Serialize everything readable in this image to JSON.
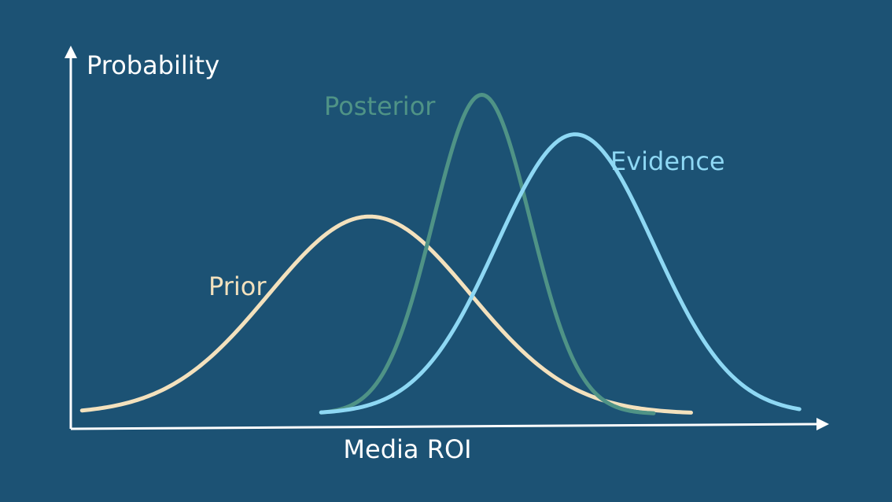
{
  "colors": {
    "background": "#1c5274",
    "axis": "#ffffff"
  },
  "chart_data": {
    "type": "line",
    "title": "",
    "xlabel": "Media ROI",
    "ylabel": "Probability",
    "grid": false,
    "xlim": [
      0,
      10
    ],
    "ylim": [
      0,
      1
    ],
    "x_ticks_shown": false,
    "y_ticks_shown": false,
    "series": [
      {
        "name": "Prior",
        "distribution": "normal",
        "mean": 4.0,
        "sd": 1.35,
        "peak": 0.6,
        "x_range": [
          0.15,
          8.3
        ],
        "color": "#f3e1bd"
      },
      {
        "name": "Posterior",
        "distribution": "normal",
        "mean": 5.5,
        "sd": 0.65,
        "peak": 0.97,
        "x_range": [
          3.35,
          7.8
        ],
        "color": "#4f9386"
      },
      {
        "name": "Evidence",
        "distribution": "normal",
        "mean": 6.75,
        "sd": 1.05,
        "peak": 0.85,
        "x_range": [
          3.35,
          9.75
        ],
        "color": "#8ed8f4"
      }
    ]
  }
}
